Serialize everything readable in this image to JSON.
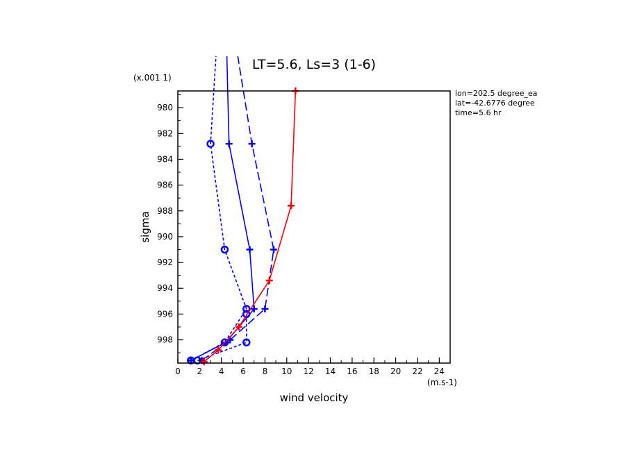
{
  "chart_data": {
    "type": "line",
    "title": "LT=5.6, Ls=3 (1-6)",
    "xlabel": "wind velocity",
    "xunits": "(m.s-1)",
    "ylabel": "sigma",
    "yscale_note": "(x.001 1)",
    "xlim": [
      0,
      25
    ],
    "ylim": [
      999.8,
      978.7
    ],
    "grid": false,
    "x_ticks": [
      0,
      2,
      4,
      6,
      8,
      10,
      12,
      14,
      16,
      18,
      20,
      22,
      24
    ],
    "y_ticks": [
      980,
      982,
      984,
      986,
      988,
      990,
      992,
      994,
      996,
      998
    ],
    "info": [
      "lon=202.5 degree_ea",
      "lat=-42.6776 degree",
      "time=5.6 hr"
    ],
    "colors": {
      "blue": "#0000ff",
      "red": "#ff0000"
    },
    "series": [
      {
        "style": "solid",
        "color": "#0000ff",
        "marker": "plus",
        "points": [
          [
            1.2,
            999.6
          ],
          [
            4.4,
            998.2
          ],
          [
            7.0,
            995.6
          ],
          [
            6.6,
            991.0
          ],
          [
            4.7,
            982.8
          ],
          [
            4.5,
            976.0
          ]
        ]
      },
      {
        "style": "dashed",
        "color": "#0000ff",
        "marker": "circle",
        "points": [
          [
            1.2,
            999.6
          ],
          [
            4.3,
            998.2
          ],
          [
            6.3,
            995.6
          ],
          [
            4.3,
            991.0
          ],
          [
            3.0,
            982.8
          ],
          [
            3.5,
            976.0
          ]
        ]
      },
      {
        "style": "dashed",
        "color": "#0000ff",
        "marker": "circle",
        "points": [
          [
            1.8,
            999.6
          ],
          [
            6.3,
            998.2
          ],
          [
            6.3,
            996.0
          ]
        ]
      },
      {
        "style": "longdash",
        "color": "#0000ff",
        "marker": "plus",
        "points": [
          [
            2.2,
            999.6
          ],
          [
            4.8,
            998.0
          ],
          [
            8.0,
            995.6
          ],
          [
            8.8,
            991.0
          ],
          [
            6.8,
            982.8
          ],
          [
            5.5,
            976.0
          ]
        ]
      },
      {
        "style": "solid",
        "color": "#ff0000",
        "marker": "plus",
        "points": [
          [
            2.4,
            999.7
          ],
          [
            3.7,
            998.8
          ],
          [
            5.6,
            997.0
          ],
          [
            8.4,
            993.4
          ],
          [
            10.4,
            987.6
          ],
          [
            10.8,
            978.7
          ]
        ]
      }
    ]
  }
}
